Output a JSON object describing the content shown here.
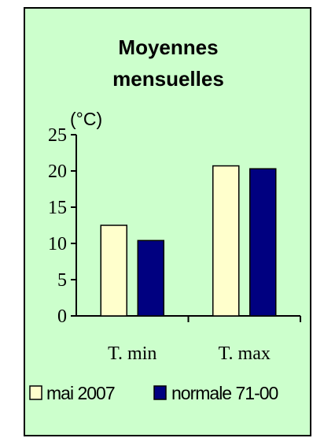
{
  "chart_data": {
    "type": "bar",
    "title": [
      "Moyennes",
      "mensuelles"
    ],
    "ylabel": "(°C)",
    "categories": [
      "T. min",
      "T. max"
    ],
    "series": [
      {
        "name": "mai 2007",
        "values": [
          12.5,
          20.7
        ],
        "color": "#ffffcc"
      },
      {
        "name": "normale 71-00",
        "values": [
          10.4,
          20.3
        ],
        "color": "#000080"
      }
    ],
    "ylim": [
      0,
      25
    ],
    "yticks": [
      0,
      5,
      10,
      15,
      20,
      25
    ],
    "grid": false,
    "legend_position": "bottom"
  }
}
